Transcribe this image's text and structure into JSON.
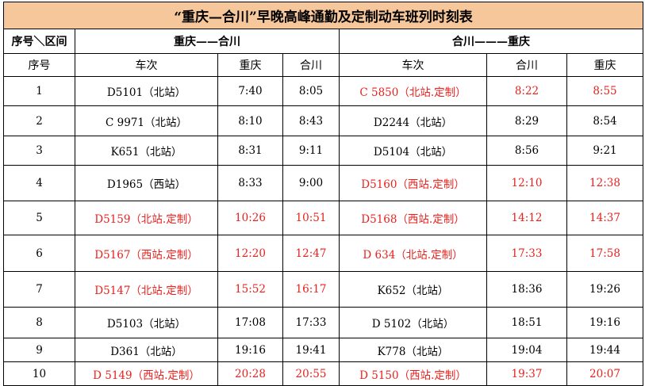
{
  "title": "“重庆—合川”早晚高峰通勤及定制动车班列时刻表",
  "section_header": {
    "corner": "序号＼区间",
    "outbound": "重庆——合川",
    "inbound": "合川———重庆"
  },
  "column_headers": {
    "seq": "序号",
    "out_train": "车次",
    "out_dep": "重庆",
    "out_arr": "合川",
    "in_train": "车次",
    "in_dep": "合川",
    "in_arr": "重庆"
  },
  "colors": {
    "title_bg": "#f7c79c",
    "custom_train": "#e8211d",
    "regular_train": "#000000"
  },
  "rows": [
    {
      "seq": "1",
      "out": {
        "train": "D5101（北站）",
        "dep": "7:40",
        "arr": "8:05",
        "custom": false
      },
      "in": {
        "train": "C 5850（北站.定制）",
        "dep": "8:22",
        "arr": "8:55",
        "custom": true
      }
    },
    {
      "seq": "2",
      "out": {
        "train": "C 9971（北站）",
        "dep": "8:10",
        "arr": "8:43",
        "custom": false
      },
      "in": {
        "train": "D2244（北站）",
        "dep": "8:29",
        "arr": "8:54",
        "custom": false
      }
    },
    {
      "seq": "3",
      "out": {
        "train": "K651（北站）",
        "dep": "8:31",
        "arr": "9:11",
        "custom": false
      },
      "in": {
        "train": "D5104（北站）",
        "dep": "8:56",
        "arr": "9:21",
        "custom": false
      }
    },
    {
      "seq": "4",
      "out": {
        "train": "D1965（西站）",
        "dep": "8:33",
        "arr": "9:00",
        "custom": false
      },
      "in": {
        "train": "D5160（西站.定制）",
        "dep": "12:10",
        "arr": "12:38",
        "custom": true
      }
    },
    {
      "seq": "5",
      "out": {
        "train": "D5159（北站.定制）",
        "dep": "10:26",
        "arr": "10:51",
        "custom": true
      },
      "in": {
        "train": "D5168（西站.定制）",
        "dep": "14:12",
        "arr": "14:37",
        "custom": true
      }
    },
    {
      "seq": "6",
      "out": {
        "train": "D5167（西站.定制）",
        "dep": "12:20",
        "arr": "12:47",
        "custom": true
      },
      "in": {
        "train": "D 634（北站.定制）",
        "dep": "17:33",
        "arr": "17:58",
        "custom": true
      }
    },
    {
      "seq": "7",
      "out": {
        "train": "D5147（北站.定制）",
        "dep": "15:52",
        "arr": "16:17",
        "custom": true
      },
      "in": {
        "train": "K652（北站）",
        "dep": "18:36",
        "arr": "19:26",
        "custom": false
      }
    },
    {
      "seq": "8",
      "out": {
        "train": "D5103（北站）",
        "dep": "17:08",
        "arr": "17:33",
        "custom": false
      },
      "in": {
        "train": "D 5102（北站）",
        "dep": "18:51",
        "arr": "19:16",
        "custom": false
      }
    },
    {
      "seq": "9",
      "out": {
        "train": "D361（北站）",
        "dep": "19:16",
        "arr": "19:41",
        "custom": false
      },
      "in": {
        "train": "K778（北站）",
        "dep": "19:04",
        "arr": "19:44",
        "custom": false
      }
    },
    {
      "seq": "10",
      "out": {
        "train": "D 5149（西站.定制）",
        "dep": "20:28",
        "arr": "20:55",
        "custom": true
      },
      "in": {
        "train": "D 5150（西站.定制）",
        "dep": "19:37",
        "arr": "20:07",
        "custom": true
      }
    }
  ]
}
